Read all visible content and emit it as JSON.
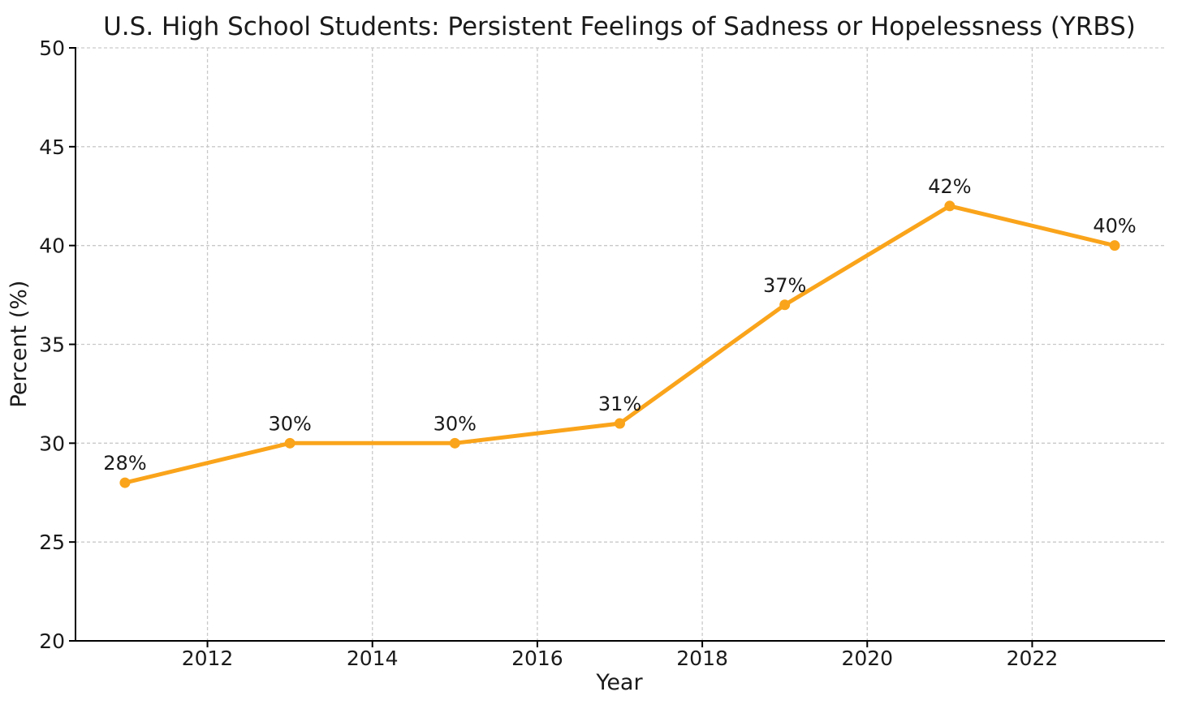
{
  "figure": {
    "background_color": "#ffffff",
    "text_color": "#1a1a1a"
  },
  "chart_data": {
    "type": "line",
    "title": "U.S. High School Students: Persistent Feelings of Sadness or Hopelessness (YRBS)",
    "xlabel": "Year",
    "ylabel": "Percent (%)",
    "x": [
      2011,
      2013,
      2015,
      2017,
      2019,
      2021,
      2023
    ],
    "values": [
      28,
      30,
      30,
      31,
      37,
      42,
      40
    ],
    "point_labels": [
      "28%",
      "30%",
      "30%",
      "31%",
      "37%",
      "42%",
      "40%"
    ],
    "xticks": [
      2012,
      2014,
      2016,
      2018,
      2020,
      2022
    ],
    "xtick_labels": [
      "2012",
      "2014",
      "2016",
      "2018",
      "2020",
      "2022"
    ],
    "yticks": [
      20,
      25,
      30,
      35,
      40,
      45,
      50
    ],
    "ytick_labels": [
      "20",
      "25",
      "30",
      "35",
      "40",
      "45",
      "50"
    ],
    "xlim": [
      2010.4,
      2023.6
    ],
    "ylim": [
      20,
      50
    ],
    "grid": true,
    "grid_style": "dashed",
    "legend": "none",
    "line_color": "#FAA41B",
    "marker": "circle",
    "marker_color": "#FAA41B",
    "grid_color": "#c9c9c9",
    "axis_color": "#000000"
  }
}
